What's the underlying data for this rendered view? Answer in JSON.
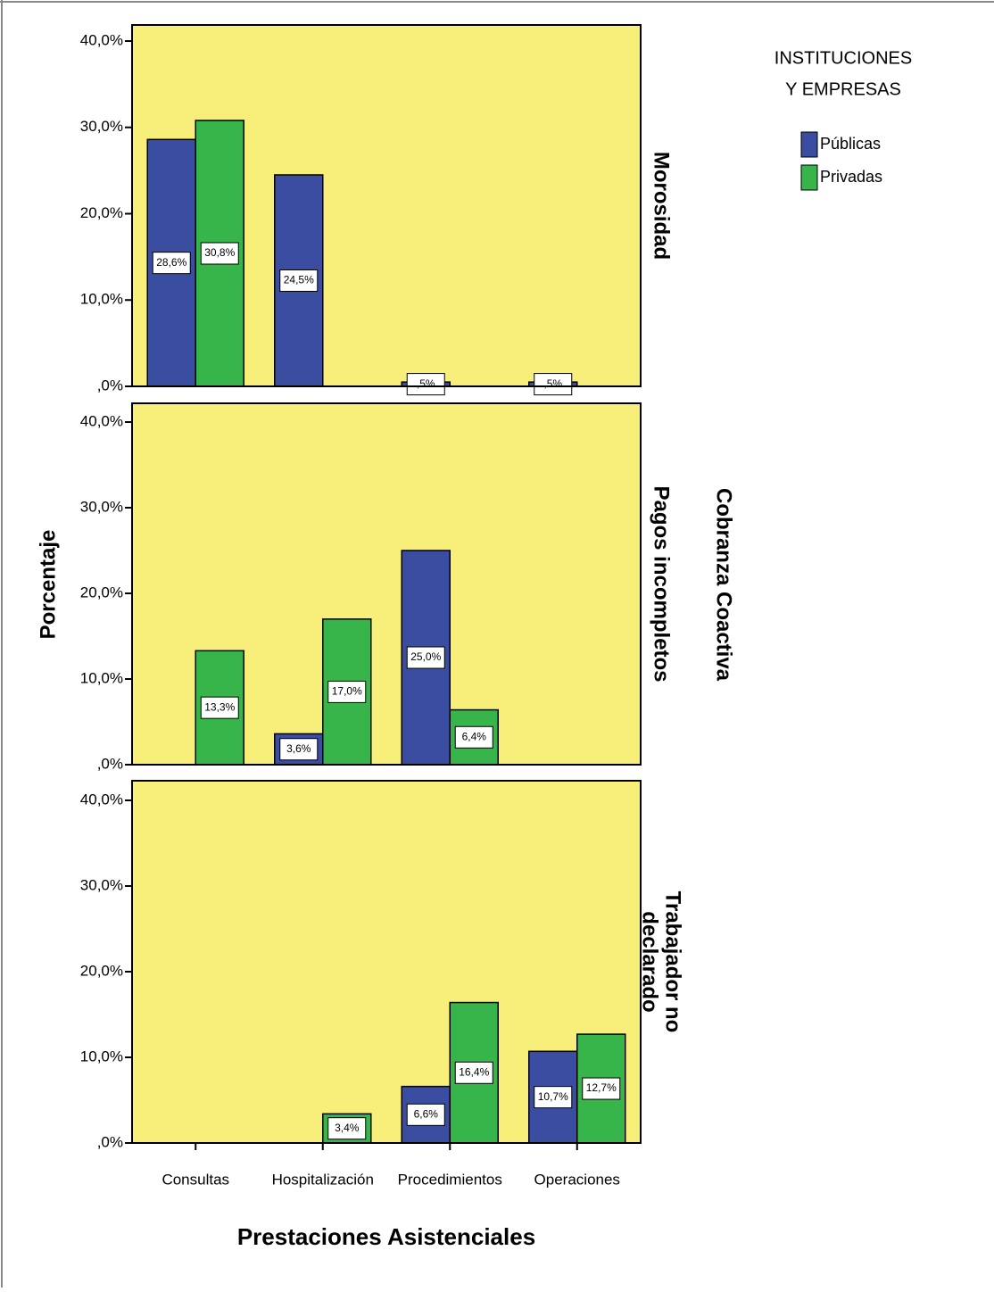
{
  "chart_data": {
    "type": "bar",
    "y_label": "Porcentaje",
    "x_label": "Prestaciones Asistenciales",
    "row_group_label": "Cobranza Coactiva",
    "legend_title": [
      "INSTITUCIONES",
      "Y EMPRESAS"
    ],
    "categories": [
      "Consultas",
      "Hospitalización",
      "Procedimientos",
      "Operaciones"
    ],
    "series": [
      {
        "name": "Públicas",
        "color": "#3b4da0"
      },
      {
        "name": "Privadas",
        "color": "#38b54a"
      }
    ],
    "ylim": [
      0,
      40
    ],
    "yticks": [
      {
        "value": 0,
        "label": ",0%"
      },
      {
        "value": 10,
        "label": "10,0%"
      },
      {
        "value": 20,
        "label": "20,0%"
      },
      {
        "value": 30,
        "label": "30,0%"
      },
      {
        "value": 40,
        "label": "40,0%"
      }
    ],
    "panels": [
      {
        "title": [
          "Morosidad"
        ],
        "values": [
          [
            28.6,
            24.5,
            0.5,
            0.5
          ],
          [
            30.8,
            null,
            null,
            null
          ]
        ],
        "value_labels": [
          [
            "28,6%",
            "24,5%",
            ",5%",
            ",5%"
          ],
          [
            "30,8%",
            null,
            null,
            null
          ]
        ]
      },
      {
        "title": [
          "Pagos incompletos"
        ],
        "values": [
          [
            null,
            3.6,
            25.0,
            null
          ],
          [
            13.3,
            17.0,
            6.4,
            null
          ]
        ],
        "value_labels": [
          [
            null,
            "3,6%",
            "25,0%",
            null
          ],
          [
            "13,3%",
            "17,0%",
            "6,4%",
            null
          ]
        ]
      },
      {
        "title": [
          "Trabajador no",
          "declarado"
        ],
        "values": [
          [
            null,
            null,
            6.6,
            10.7
          ],
          [
            null,
            3.4,
            16.4,
            12.7
          ]
        ],
        "value_labels": [
          [
            null,
            null,
            "6,6%",
            "10,7%"
          ],
          [
            null,
            "3,4%",
            "16,4%",
            "12,7%"
          ]
        ]
      }
    ]
  }
}
